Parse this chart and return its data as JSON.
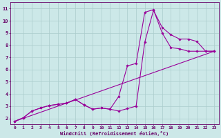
{
  "xlabel": "Windchill (Refroidissement éolien,°C)",
  "bg_color": "#cce8e8",
  "line_color": "#990099",
  "grid_color": "#aacccc",
  "axis_label_color": "#660066",
  "tick_label_color": "#660066",
  "xlim": [
    -0.5,
    23.5
  ],
  "ylim": [
    1.5,
    11.5
  ],
  "xticks": [
    0,
    1,
    2,
    3,
    4,
    5,
    6,
    7,
    8,
    9,
    10,
    11,
    12,
    13,
    14,
    15,
    16,
    17,
    18,
    19,
    20,
    21,
    22,
    23
  ],
  "yticks": [
    2,
    3,
    4,
    5,
    6,
    7,
    8,
    9,
    10,
    11
  ],
  "line1_x": [
    0,
    1,
    2,
    3,
    4,
    5,
    6,
    7,
    8,
    9,
    10,
    11,
    12,
    13,
    14,
    15,
    16,
    17,
    18,
    19,
    20,
    21,
    22,
    23
  ],
  "line1_y": [
    1.75,
    2.05,
    2.6,
    2.85,
    3.05,
    3.15,
    3.25,
    3.55,
    3.1,
    2.75,
    2.85,
    2.75,
    2.6,
    2.8,
    3.0,
    8.25,
    10.85,
    9.45,
    8.85,
    8.5,
    8.5,
    8.3,
    7.5,
    7.5
  ],
  "line2_x": [
    0,
    1,
    2,
    3,
    4,
    5,
    6,
    7,
    8,
    9,
    10,
    11,
    12,
    13,
    14,
    15,
    16,
    17,
    18,
    19,
    20,
    21,
    22,
    23
  ],
  "line2_y": [
    1.75,
    2.05,
    2.6,
    2.85,
    3.05,
    3.15,
    3.25,
    3.55,
    3.1,
    2.75,
    2.85,
    2.75,
    3.8,
    6.3,
    6.5,
    10.7,
    10.9,
    9.0,
    7.8,
    7.7,
    7.5,
    7.5,
    7.5,
    7.5
  ],
  "line3_x": [
    0,
    23
  ],
  "line3_y": [
    1.75,
    7.5
  ]
}
